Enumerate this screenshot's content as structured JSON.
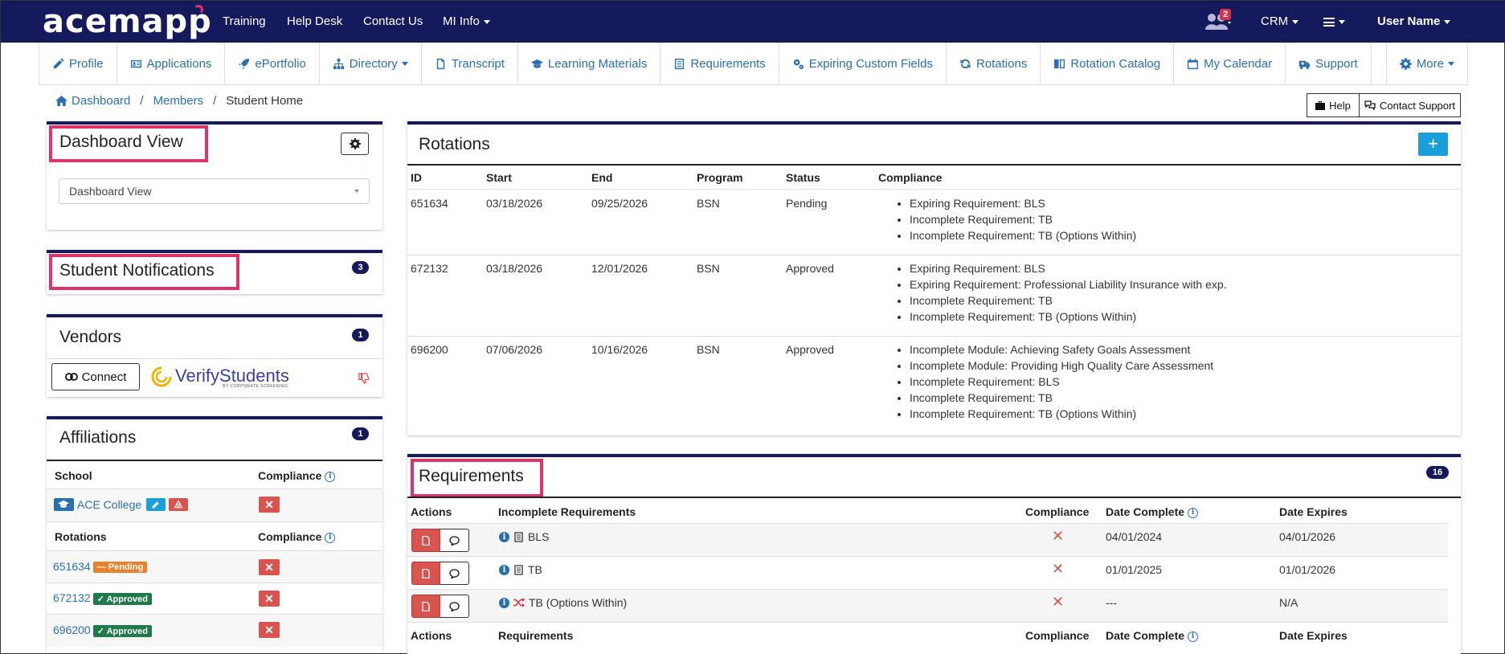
{
  "topbar": {
    "logo": "acemapp",
    "nav": [
      "Training",
      "Help Desk",
      "Contact Us",
      "MI Info"
    ],
    "notification_count": "2",
    "crm": "CRM",
    "user": "User Name"
  },
  "subnav": [
    {
      "label": "Profile",
      "icon": "pencil-icon"
    },
    {
      "label": "Applications",
      "icon": "id-card-icon"
    },
    {
      "label": "ePortfolio",
      "icon": "rocket-icon"
    },
    {
      "label": "Directory",
      "icon": "sitemap-icon"
    },
    {
      "label": "Transcript",
      "icon": "file-icon"
    },
    {
      "label": "Learning Materials",
      "icon": "graduation-cap-icon"
    },
    {
      "label": "Requirements",
      "icon": "list-icon"
    },
    {
      "label": "Expiring Custom Fields",
      "icon": "cogs-icon"
    },
    {
      "label": "Rotations",
      "icon": "refresh-icon"
    },
    {
      "label": "Rotation Catalog",
      "icon": "book-icon"
    },
    {
      "label": "My Calendar",
      "icon": "calendar-icon"
    },
    {
      "label": "Support",
      "icon": "ambulance-icon"
    }
  ],
  "subnav_more": "More",
  "breadcrumb": [
    "Dashboard",
    "Members",
    "Student Home"
  ],
  "help_button": "Help",
  "contact_support_button": "Contact Support",
  "dashboard_view": {
    "title": "Dashboard View",
    "select_value": "Dashboard View"
  },
  "student_notifications": {
    "title": "Student Notifications",
    "count": "3"
  },
  "vendors": {
    "title": "Vendors",
    "count": "1",
    "connect": "Connect",
    "vendor_name": "VerifyStudents",
    "vendor_tagline": "BY CORPORATE SCREENING"
  },
  "affiliations": {
    "title": "Affiliations",
    "count": "1",
    "col_school": "School",
    "col_compliance": "Compliance",
    "school": "ACE College",
    "col_rotations": "Rotations",
    "col_compliance2": "Compliance",
    "rotations": [
      {
        "id": "651634",
        "status": "Pending",
        "color": "#e8822b"
      },
      {
        "id": "672132",
        "status": "Approved",
        "color": "#1e7a4a"
      },
      {
        "id": "696200",
        "status": "Approved",
        "color": "#1e7a4a"
      }
    ]
  },
  "rotations": {
    "title": "Rotations",
    "columns": [
      "ID",
      "Start",
      "End",
      "Program",
      "Status",
      "Compliance"
    ],
    "rows": [
      {
        "id": "651634",
        "start": "03/18/2026",
        "end": "09/25/2026",
        "program": "BSN",
        "status": "Pending",
        "compliance": [
          "Expiring Requirement: BLS",
          "Incomplete Requirement: TB",
          "Incomplete Requirement: TB (Options Within)"
        ]
      },
      {
        "id": "672132",
        "start": "03/18/2026",
        "end": "12/01/2026",
        "program": "BSN",
        "status": "Approved",
        "compliance": [
          "Expiring Requirement: BLS",
          "Expiring Requirement: Professional Liability Insurance with exp.",
          "Incomplete Requirement: TB",
          "Incomplete Requirement: TB (Options Within)"
        ]
      },
      {
        "id": "696200",
        "start": "07/06/2026",
        "end": "10/16/2026",
        "program": "BSN",
        "status": "Approved",
        "compliance": [
          "Incomplete Module: Achieving Safety Goals Assessment",
          "Incomplete Module: Providing High Quality Care Assessment",
          "Incomplete Requirement: BLS",
          "Incomplete Requirement: TB",
          "Incomplete Requirement: TB (Options Within)"
        ]
      }
    ]
  },
  "requirements": {
    "title": "Requirements",
    "count": "16",
    "columns": [
      "Actions",
      "Incomplete Requirements",
      "Compliance",
      "Date Complete",
      "Date Expires"
    ],
    "rows": [
      {
        "name": "BLS",
        "type_icon": "book-icon",
        "date_complete": "04/01/2024",
        "date_expires": "04/01/2026"
      },
      {
        "name": "TB",
        "type_icon": "book-icon",
        "date_complete": "01/01/2025",
        "date_expires": "01/01/2026"
      },
      {
        "name": "TB (Options Within)",
        "type_icon": "shuffle-icon",
        "date_complete": "---",
        "date_expires": "N/A"
      }
    ],
    "columns2": [
      "Actions",
      "Requirements",
      "Compliance",
      "Date Complete",
      "Date Expires"
    ]
  },
  "colors": {
    "navy": "#151a5c",
    "highlight": "#e0336b",
    "link": "#2a6fb0",
    "danger": "#d9534f",
    "accent": "#1a9fdb"
  }
}
